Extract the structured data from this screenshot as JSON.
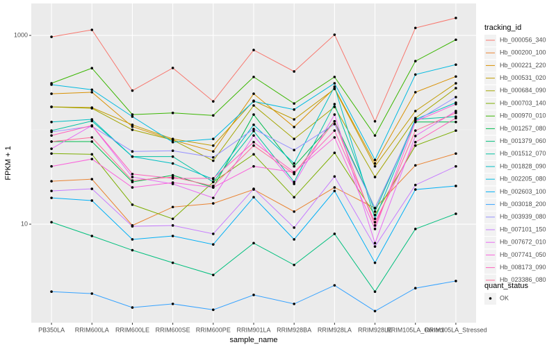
{
  "chart_data": {
    "type": "line",
    "x_label": "sample_name",
    "y_label": "FPKM + 1",
    "categories": [
      "PB350LA",
      "RRIM600LA",
      "RRIM600LE",
      "RRIM600SE",
      "RRIM600PE",
      "RRIM901LA",
      "RRIM928BA",
      "RRIM928LA",
      "RRIM928LE",
      "RRIM105LA_Control",
      "RRIM105LA_Stressed"
    ],
    "y_log": true,
    "ylim": [
      0.904,
      2180
    ],
    "yticks": [
      10,
      1000
    ],
    "grid": true,
    "legend_title": "tracking_id",
    "legend_position": "right",
    "point_legend": {
      "title": "quant_status",
      "labels": [
        "OK"
      ],
      "color": "#000000"
    },
    "series": [
      {
        "name": "Hb_000056_340",
        "color": "#F8766D",
        "values": [
          966,
          1145,
          260,
          452,
          200,
          700,
          415,
          1017,
          123,
          1200,
          1530
        ]
      },
      {
        "name": "Hb_000200_100",
        "color": "#EA8331",
        "values": [
          28.5,
          30,
          9.7,
          15.2,
          16.6,
          23.3,
          13.6,
          24.5,
          14.8,
          42,
          56
        ]
      },
      {
        "name": "Hb_000221_220",
        "color": "#D89000",
        "values": [
          241,
          250,
          108,
          78,
          59,
          241,
          107,
          276,
          44,
          250,
          367
        ]
      },
      {
        "name": "Hb_000531_020",
        "color": "#C09B00",
        "values": [
          175,
          172,
          113,
          80,
          68,
          203,
          129,
          271,
          41,
          158,
          311
        ]
      },
      {
        "name": "Hb_000684_090",
        "color": "#A3A500",
        "values": [
          175,
          169,
          100,
          78,
          47,
          181,
          80,
          175,
          31.6,
          133,
          276
        ]
      },
      {
        "name": "Hb_000703_140",
        "color": "#7CAE00",
        "values": [
          56,
          55,
          16.1,
          11.4,
          28,
          55,
          19.3,
          57,
          12.5,
          68,
          98
        ]
      },
      {
        "name": "Hb_000970_010",
        "color": "#39B600",
        "values": [
          311,
          450,
          145,
          151,
          142,
          363,
          190,
          363,
          87,
          534,
          900
        ]
      },
      {
        "name": "Hb_001257_080",
        "color": "#00BB4E",
        "values": [
          75,
          75,
          28,
          33,
          24.5,
          145,
          41,
          123,
          14.8,
          121,
          121
        ]
      },
      {
        "name": "Hb_001379_060",
        "color": "#00BF7D",
        "values": [
          10.5,
          7.5,
          5.3,
          3.9,
          2.9,
          6.3,
          3.7,
          7.9,
          1.93,
          8.9,
          12.9
        ]
      },
      {
        "name": "Hb_001512_070",
        "color": "#00C1A3",
        "values": [
          98,
          124,
          52,
          52,
          28,
          97,
          28,
          187,
          13.6,
          129,
          138
        ]
      },
      {
        "name": "Hb_001828_090",
        "color": "#00BFC4",
        "values": [
          121,
          129,
          52,
          44,
          30,
          113,
          44,
          287,
          11.4,
          129,
          194
        ]
      },
      {
        "name": "Hb_002205_080",
        "color": "#00BAE0",
        "values": [
          301,
          266,
          138,
          74,
          80,
          200,
          164,
          311,
          48,
          385,
          490
        ]
      },
      {
        "name": "Hb_002603_100",
        "color": "#00B0F6",
        "values": [
          19,
          17.8,
          6.9,
          7.5,
          6.1,
          19.3,
          6.9,
          22.5,
          3.9,
          23.3,
          25.4
        ]
      },
      {
        "name": "Hb_003018_200",
        "color": "#35A2FF",
        "values": [
          1.93,
          1.84,
          1.31,
          1.43,
          1.24,
          1.78,
          1.43,
          2.25,
          1.2,
          2.1,
          2.5
        ]
      },
      {
        "name": "Hb_003939_080",
        "color": "#9590FF",
        "values": [
          95,
          109,
          59,
          60,
          51,
          102,
          61,
          115,
          14.8,
          123,
          222
        ]
      },
      {
        "name": "Hb_007101_150",
        "color": "#C77CFF",
        "values": [
          22.5,
          23.7,
          9.5,
          9.7,
          7.9,
          23.7,
          9.2,
          32,
          5.8,
          26,
          41
        ]
      },
      {
        "name": "Hb_007672_010",
        "color": "#E76BF3",
        "values": [
          63,
          111,
          31.6,
          26.7,
          19,
          87,
          26.7,
          145,
          6.3,
          86,
          158
        ]
      },
      {
        "name": "Hb_007741_050",
        "color": "#FA62DB",
        "values": [
          41,
          49,
          24.5,
          27.6,
          24.5,
          41,
          35.5,
          83,
          8.9,
          123,
          187
        ]
      },
      {
        "name": "Hb_008173_090",
        "color": "#FF62BC",
        "values": [
          87,
          111,
          34,
          30.6,
          30.6,
          74,
          35.5,
          98,
          10.5,
          74,
          133
        ]
      },
      {
        "name": "Hb_023386_080",
        "color": "#FF6A98",
        "values": [
          75,
          83,
          29,
          31.6,
          25.4,
          68,
          34,
          123,
          9.7,
          98,
          151
        ]
      }
    ]
  }
}
